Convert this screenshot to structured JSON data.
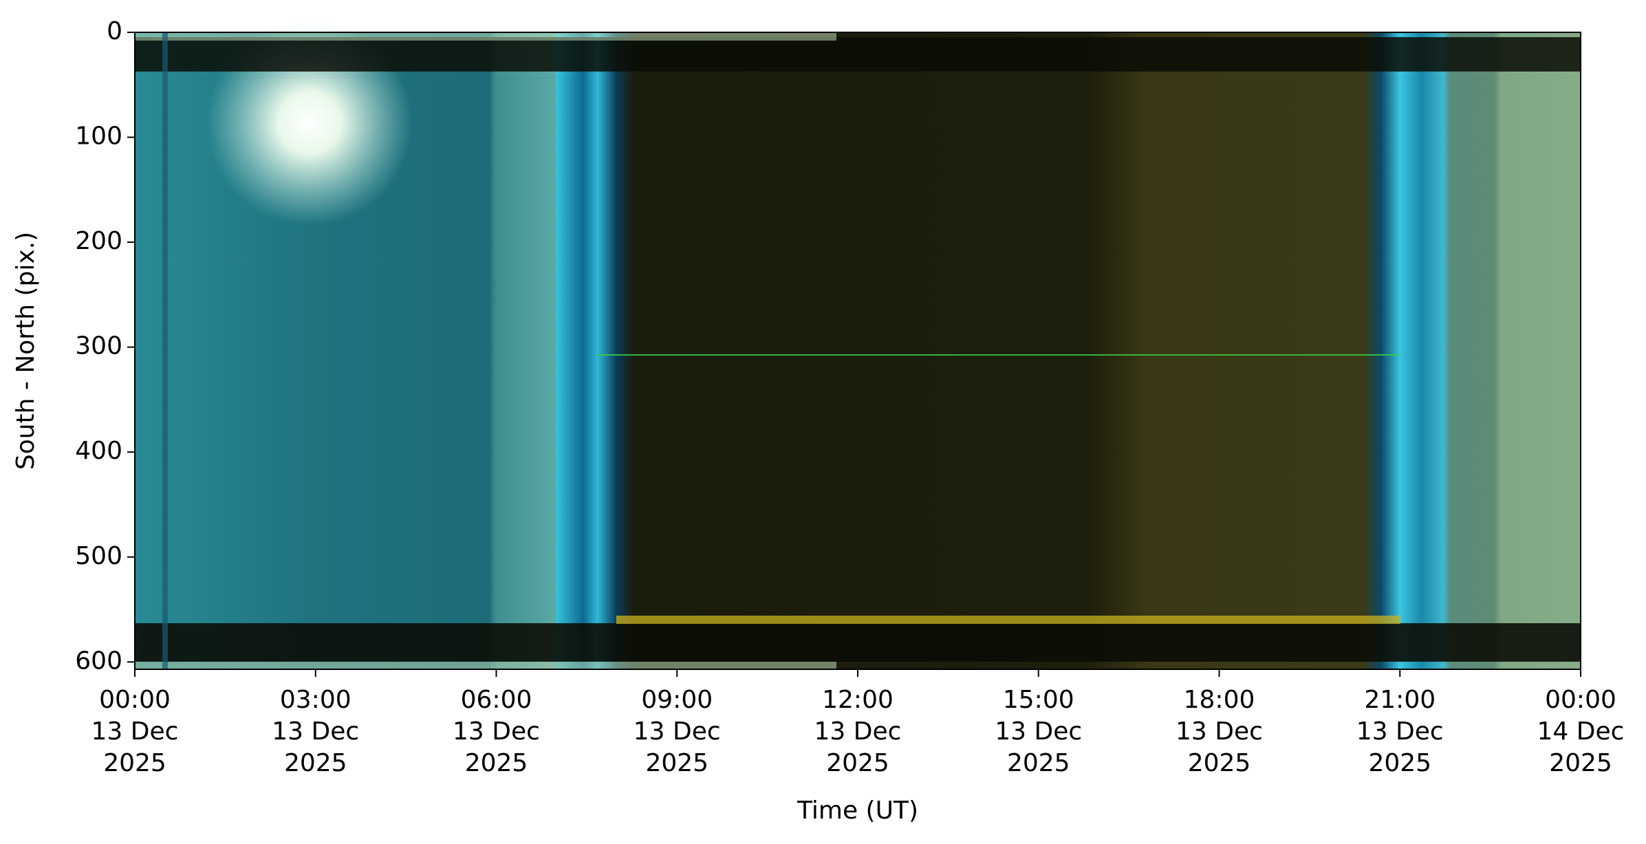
{
  "chart_data": {
    "type": "image",
    "xlabel": "Time (UT)",
    "ylabel": "South - North (pix.)",
    "xlim": [
      0,
      24
    ],
    "xticks": [
      {
        "value": 0,
        "label": "00:00\n13 Dec\n2025"
      },
      {
        "value": 3,
        "label": "03:00\n13 Dec\n2025"
      },
      {
        "value": 6,
        "label": "06:00\n13 Dec\n2025"
      },
      {
        "value": 9,
        "label": "09:00\n13 Dec\n2025"
      },
      {
        "value": 12,
        "label": "12:00\n13 Dec\n2025"
      },
      {
        "value": 15,
        "label": "15:00\n13 Dec\n2025"
      },
      {
        "value": 18,
        "label": "18:00\n13 Dec\n2025"
      },
      {
        "value": 21,
        "label": "21:00\n13 Dec\n2025"
      },
      {
        "value": 24,
        "label": "00:00\n14 Dec\n2025"
      }
    ],
    "ylim": [
      607,
      0
    ],
    "yticks": [
      0,
      100,
      200,
      300,
      400,
      500,
      600
    ]
  }
}
